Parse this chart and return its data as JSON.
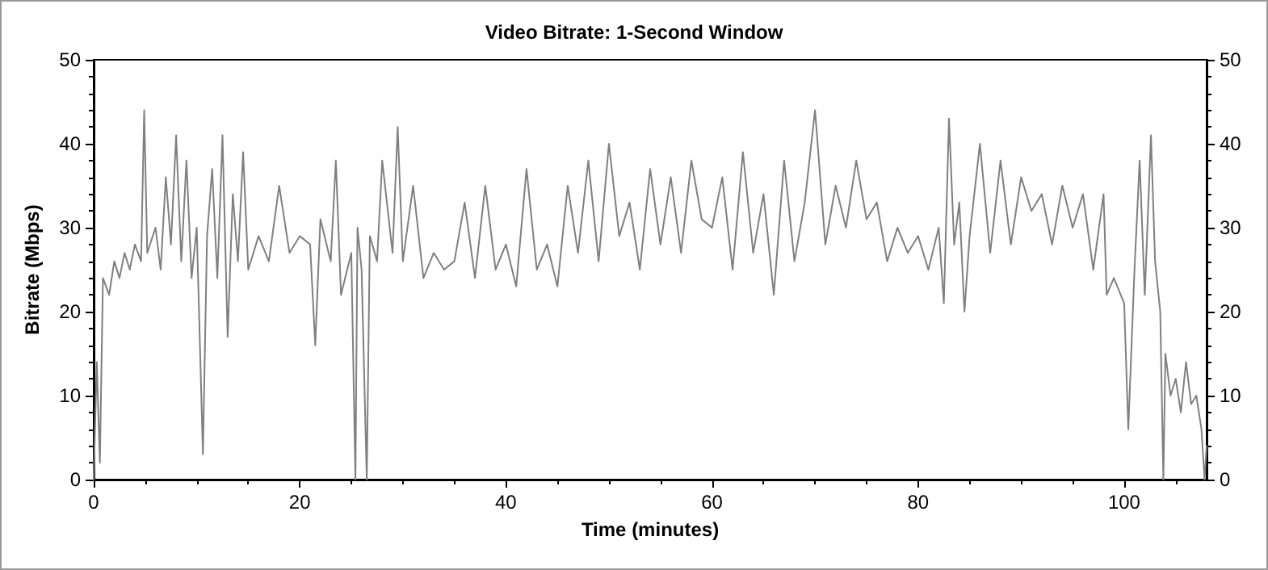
{
  "chart_data": {
    "type": "line",
    "title": "Video Bitrate: 1-Second Window",
    "xlabel": "Time (minutes)",
    "ylabel": "Bitrate (Mbps)",
    "xlim": [
      0,
      108
    ],
    "xticks": [
      0,
      20,
      40,
      60,
      80,
      100
    ],
    "ylim": [
      0,
      50
    ],
    "yticks": [
      0,
      10,
      20,
      30,
      40,
      50
    ],
    "y2lim": [
      0,
      50
    ],
    "y2ticks": [
      0,
      10,
      20,
      30,
      40,
      50
    ],
    "grid": false,
    "marker": "none",
    "line_style": "solid",
    "series": [
      {
        "color": "#808080",
        "x": [
          0,
          0.3,
          0.6,
          0.9,
          1.5,
          2,
          2.5,
          3,
          3.5,
          4,
          4.6,
          4.9,
          5.2,
          6,
          6.5,
          7,
          7.5,
          8,
          8.5,
          9,
          9.5,
          10,
          10.6,
          11,
          11.5,
          12,
          12.5,
          13,
          13.5,
          14,
          14.5,
          15,
          16,
          17,
          18,
          19,
          20,
          21,
          21.5,
          22,
          23,
          23.5,
          24,
          25,
          25.4,
          25.6,
          26,
          26.5,
          26.8,
          27.5,
          28,
          29,
          29.5,
          30,
          31,
          32,
          33,
          34,
          35,
          36,
          37,
          38,
          39,
          40,
          41,
          42,
          43,
          44,
          45,
          46,
          47,
          48,
          49,
          50,
          51,
          52,
          53,
          54,
          55,
          56,
          57,
          58,
          59,
          60,
          61,
          62,
          63,
          64,
          65,
          66,
          67,
          68,
          69,
          70,
          71,
          72,
          73,
          74,
          75,
          76,
          77,
          78,
          79,
          80,
          81,
          82,
          82.5,
          83,
          83.5,
          84,
          84.5,
          85,
          86,
          87,
          88,
          89,
          90,
          91,
          92,
          93,
          94,
          95,
          96,
          97,
          98,
          98.3,
          99,
          100,
          100.4,
          101,
          101.5,
          102,
          102.6,
          103,
          103.5,
          103.8,
          104,
          104.5,
          105,
          105.5,
          106,
          106.5,
          107,
          107.5,
          107.8,
          108
        ],
        "values": [
          0,
          14,
          2,
          24,
          22,
          26,
          24,
          27,
          25,
          28,
          26,
          44,
          27,
          30,
          25,
          36,
          28,
          41,
          26,
          38,
          24,
          30,
          3,
          29,
          37,
          24,
          41,
          17,
          34,
          26,
          39,
          25,
          29,
          26,
          35,
          27,
          29,
          28,
          16,
          31,
          26,
          38,
          22,
          27,
          0,
          30,
          25,
          0,
          29,
          26,
          38,
          27,
          42,
          26,
          35,
          24,
          27,
          25,
          26,
          33,
          24,
          35,
          25,
          28,
          23,
          37,
          25,
          28,
          23,
          35,
          27,
          38,
          26,
          40,
          29,
          33,
          25,
          37,
          28,
          36,
          27,
          38,
          31,
          30,
          36,
          25,
          39,
          27,
          34,
          22,
          38,
          26,
          33,
          44,
          28,
          35,
          30,
          38,
          31,
          33,
          26,
          30,
          27,
          29,
          25,
          30,
          21,
          43,
          28,
          33,
          20,
          29,
          40,
          27,
          38,
          28,
          36,
          32,
          34,
          28,
          35,
          30,
          34,
          25,
          34,
          22,
          24,
          21,
          6,
          25,
          38,
          22,
          41,
          26,
          20,
          0,
          15,
          10,
          12,
          8,
          14,
          9,
          10,
          6,
          0,
          4
        ]
      }
    ]
  }
}
